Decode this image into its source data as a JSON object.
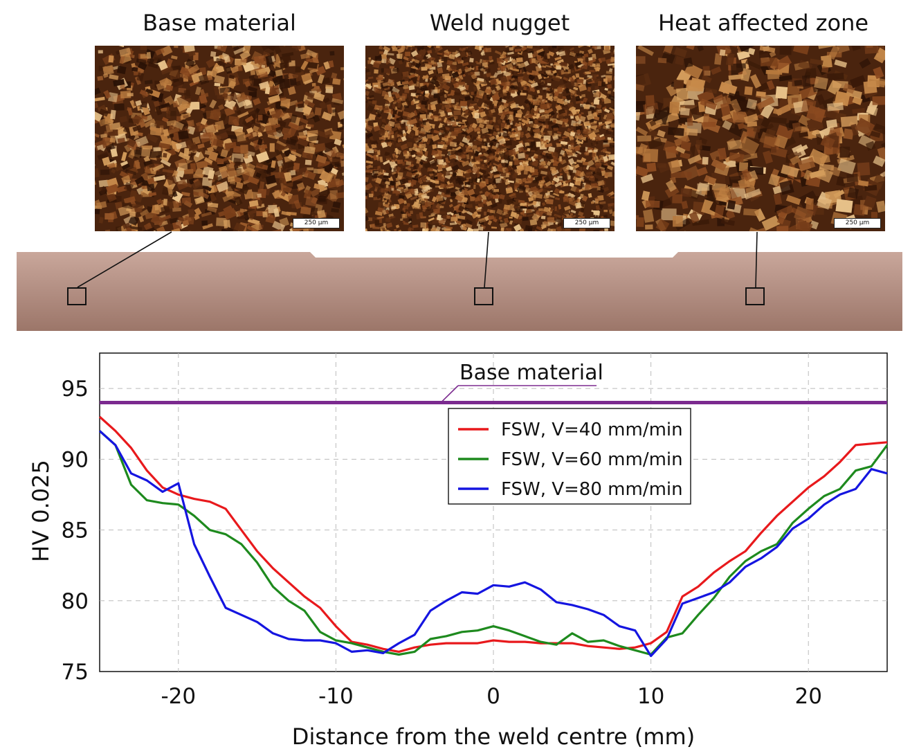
{
  "micrographs": [
    {
      "title": "Base material",
      "scale_label": "250 μm"
    },
    {
      "title": "Weld nugget",
      "scale_label": "250 μm"
    },
    {
      "title": "Heat affected zone",
      "scale_label": "250 μm"
    }
  ],
  "chart_data": {
    "type": "line",
    "xlabel": "Distance from the weld centre (mm)",
    "ylabel": "HV 0.025",
    "xlim": [
      -25,
      25
    ],
    "ylim": [
      75,
      97.5
    ],
    "xticks": [
      -20,
      -10,
      0,
      10,
      20
    ],
    "yticks": [
      75,
      80,
      85,
      90,
      95
    ],
    "grid": true,
    "legend_position": "upper-right",
    "reference_line": {
      "label": "Base material",
      "y": 94,
      "color": "#7b2a8f"
    },
    "series": [
      {
        "name": "FSW, V=40 mm/min",
        "color": "#e8191c",
        "x": [
          -25,
          -24,
          -23,
          -22,
          -21,
          -20,
          -19,
          -18,
          -17,
          -16,
          -15,
          -14,
          -13,
          -12,
          -11,
          -10,
          -9,
          -8,
          -7,
          -6,
          -5,
          -4,
          -3,
          -2,
          -1,
          0,
          1,
          2,
          3,
          4,
          5,
          6,
          7,
          8,
          9,
          10,
          11,
          12,
          13,
          14,
          15,
          16,
          17,
          18,
          19,
          20,
          21,
          22,
          23,
          24,
          25
        ],
        "y": [
          93.0,
          92.0,
          90.8,
          89.2,
          88.0,
          87.5,
          87.2,
          87.0,
          86.5,
          85.0,
          83.5,
          82.3,
          81.3,
          80.3,
          79.5,
          78.2,
          77.1,
          76.9,
          76.6,
          76.4,
          76.7,
          76.9,
          77.0,
          77.0,
          77.0,
          77.2,
          77.1,
          77.1,
          77.0,
          77.0,
          77.0,
          76.8,
          76.7,
          76.6,
          76.7,
          77.0,
          77.8,
          80.3,
          81.0,
          82.0,
          82.8,
          83.5,
          84.8,
          86.0,
          87.0,
          88.0,
          88.8,
          89.8,
          91.0,
          91.1,
          91.2
        ]
      },
      {
        "name": "FSW, V=60 mm/min",
        "color": "#1e8a1e",
        "x": [
          -25,
          -24,
          -23,
          -22,
          -21,
          -20,
          -19,
          -18,
          -17,
          -16,
          -15,
          -14,
          -13,
          -12,
          -11,
          -10,
          -9,
          -8,
          -7,
          -6,
          -5,
          -4,
          -3,
          -2,
          -1,
          0,
          1,
          2,
          3,
          4,
          5,
          6,
          7,
          8,
          9,
          10,
          11,
          12,
          13,
          14,
          15,
          16,
          17,
          18,
          19,
          20,
          21,
          22,
          23,
          24,
          25
        ],
        "y": [
          92.0,
          91.0,
          88.2,
          87.1,
          86.9,
          86.8,
          86.0,
          85.0,
          84.7,
          84.0,
          82.7,
          81.0,
          80.0,
          79.3,
          77.8,
          77.2,
          77.0,
          76.7,
          76.4,
          76.2,
          76.4,
          77.3,
          77.5,
          77.8,
          77.9,
          78.2,
          77.9,
          77.5,
          77.1,
          76.9,
          77.7,
          77.1,
          77.2,
          76.8,
          76.5,
          76.2,
          77.4,
          77.7,
          79.0,
          80.2,
          81.7,
          82.8,
          83.5,
          84.0,
          85.5,
          86.5,
          87.4,
          87.9,
          89.2,
          89.5,
          91.0
        ]
      },
      {
        "name": "FSW, V=80 mm/min",
        "color": "#1515e0",
        "x": [
          -25,
          -24,
          -23,
          -22,
          -21,
          -20,
          -19,
          -18,
          -17,
          -16,
          -15,
          -14,
          -13,
          -12,
          -11,
          -10,
          -9,
          -8,
          -7,
          -6,
          -5,
          -4,
          -3,
          -2,
          -1,
          0,
          1,
          2,
          3,
          4,
          5,
          6,
          7,
          8,
          9,
          10,
          11,
          12,
          13,
          14,
          15,
          16,
          17,
          18,
          19,
          20,
          21,
          22,
          23,
          24,
          25
        ],
        "y": [
          92.0,
          91.0,
          89.0,
          88.5,
          87.7,
          88.3,
          84.0,
          81.7,
          79.5,
          79.0,
          78.5,
          77.7,
          77.3,
          77.2,
          77.2,
          77.0,
          76.4,
          76.5,
          76.3,
          77.0,
          77.6,
          79.3,
          80.0,
          80.6,
          80.5,
          81.1,
          81.0,
          81.3,
          80.8,
          79.9,
          79.7,
          79.4,
          79.0,
          78.2,
          77.9,
          76.1,
          77.3,
          79.8,
          80.2,
          80.6,
          81.3,
          82.4,
          83.0,
          83.8,
          85.1,
          85.8,
          86.8,
          87.5,
          87.9,
          89.3,
          89.0
        ]
      }
    ]
  }
}
